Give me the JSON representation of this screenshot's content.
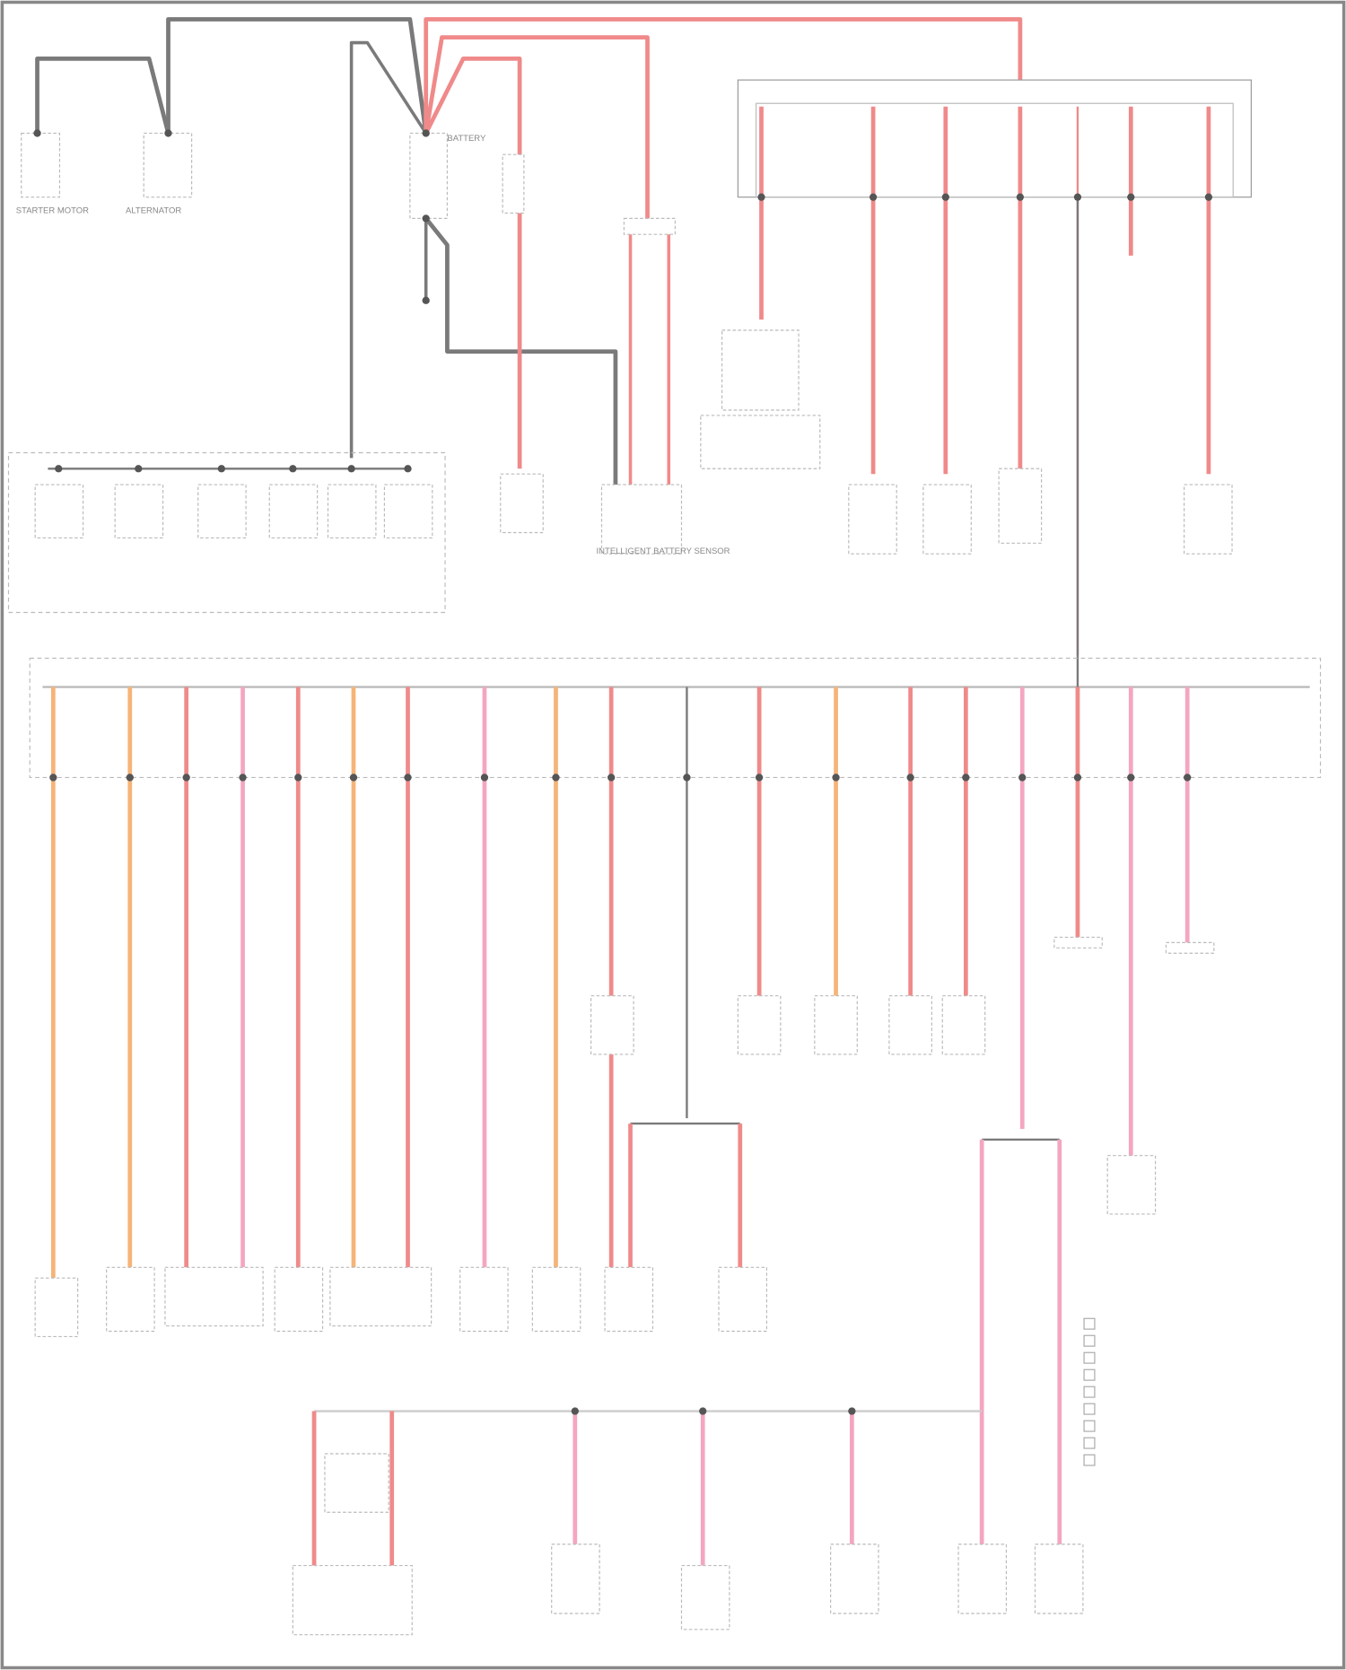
{
  "colors": {
    "wire_power": "#f08a8a",
    "wire_light": "#f4a6c0",
    "wire_orange": "#f5b478",
    "wire_ground": "#7a7a7a",
    "border": "#888888"
  },
  "components": {
    "starter": "STARTER MOTOR",
    "alternator": "ALTERNATOR",
    "battery": "BATTERY",
    "battery_sensor": "INTELLIGENT BATTERY SENSOR"
  },
  "legend": {
    "items": [
      "",
      "",
      "",
      "",
      "",
      "",
      "",
      "",
      ""
    ]
  },
  "lower_fuse_columns": [
    {
      "color": "orange"
    },
    {
      "color": "orange"
    },
    {
      "color": "power"
    },
    {
      "color": "light"
    },
    {
      "color": "power"
    },
    {
      "color": "orange"
    },
    {
      "color": "power"
    },
    {
      "color": "light"
    },
    {
      "color": "orange"
    },
    {
      "color": "power"
    },
    {
      "color": "ground"
    },
    {
      "color": "power"
    },
    {
      "color": "orange"
    },
    {
      "color": "power"
    },
    {
      "color": "power"
    },
    {
      "color": "light"
    },
    {
      "color": "power"
    },
    {
      "color": "light"
    },
    {
      "color": "light"
    }
  ],
  "upper_fuse_columns": [
    {
      "color": "power"
    },
    {
      "color": "power"
    },
    {
      "color": "power"
    },
    {
      "color": "power"
    },
    {
      "color": "power"
    },
    {
      "color": "power"
    },
    {
      "color": "power"
    }
  ]
}
